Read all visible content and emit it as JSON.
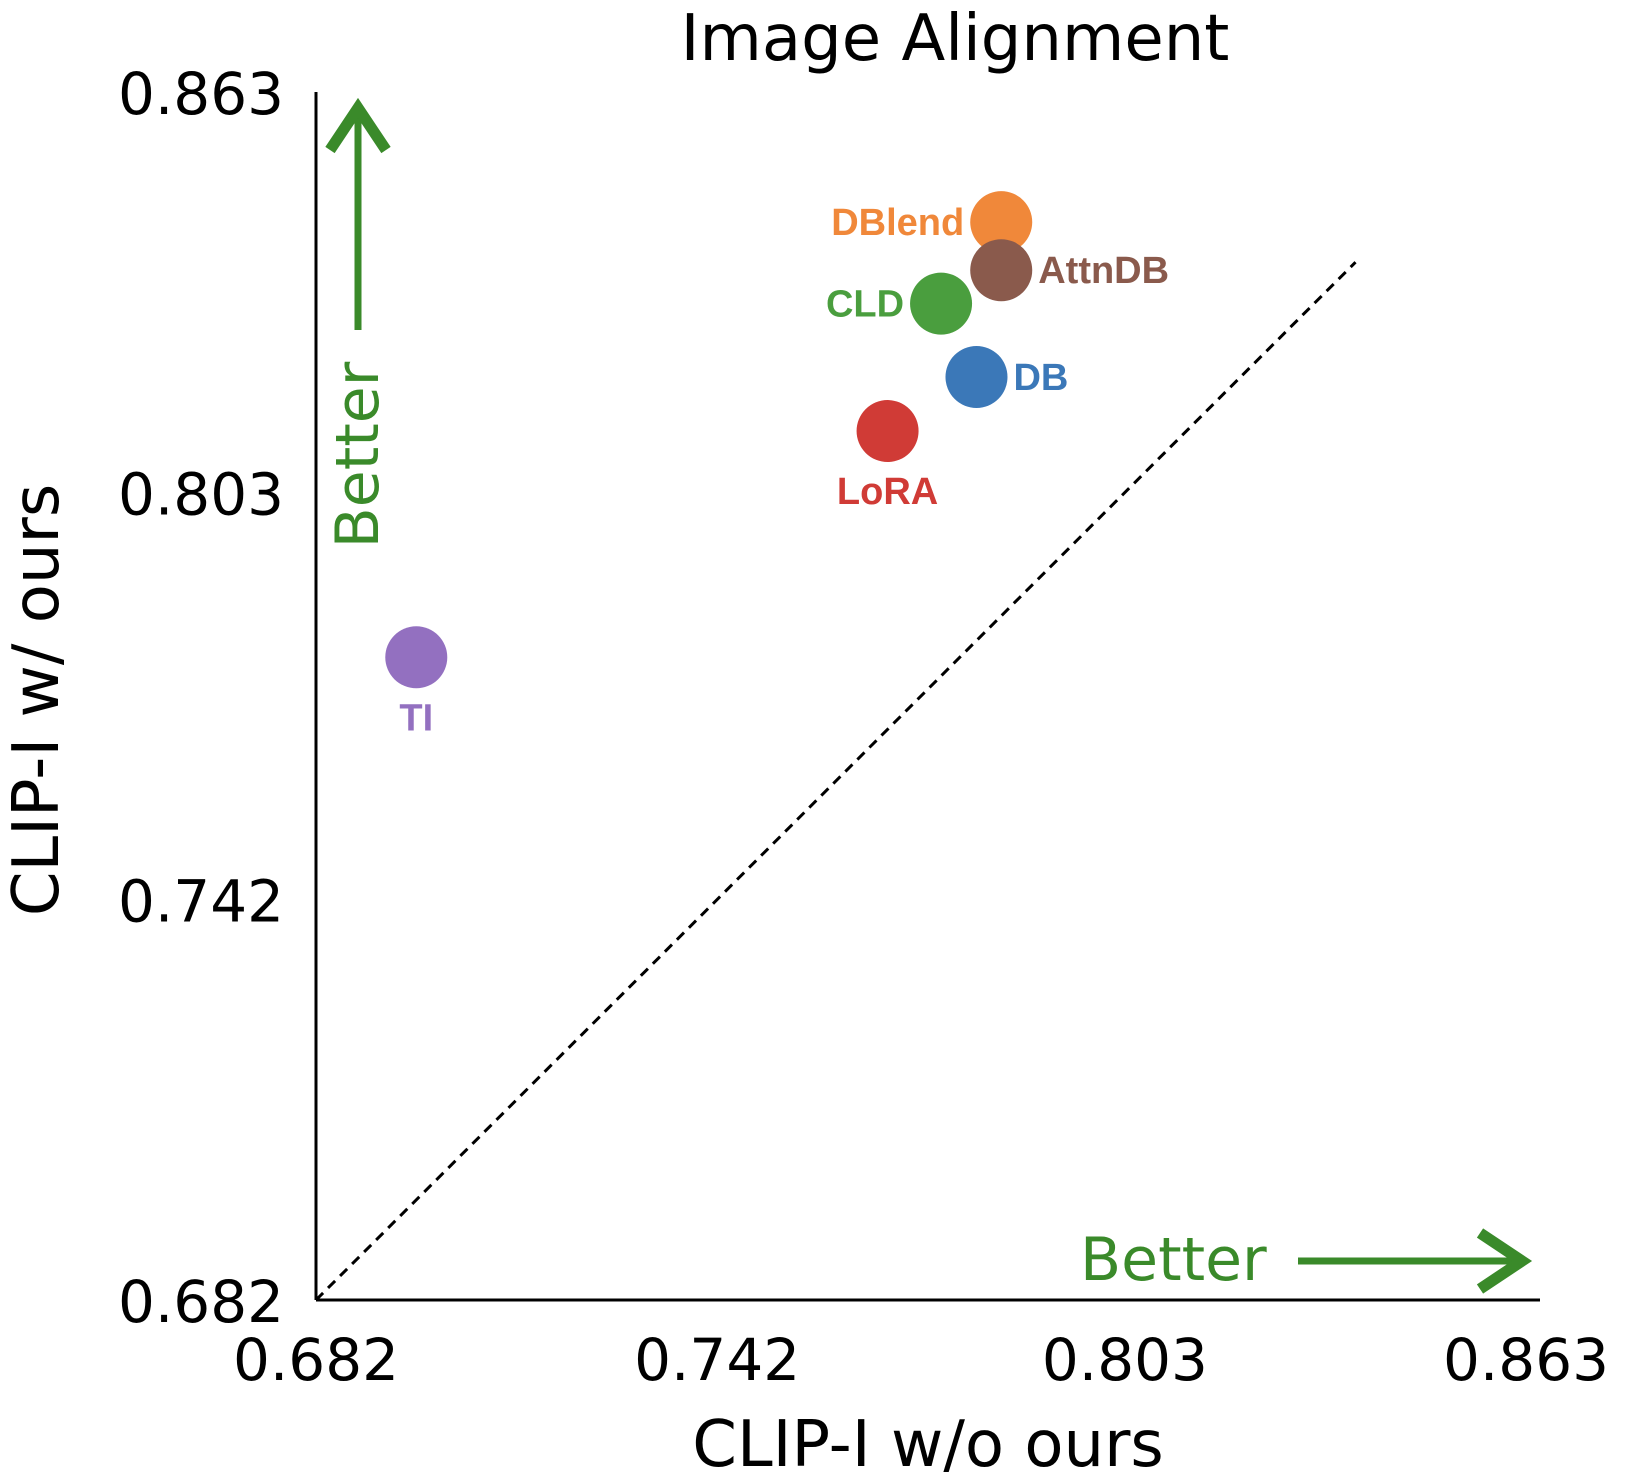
{
  "chart_data": {
    "type": "scatter",
    "title": "Image Alignment",
    "xlabel": "CLIP-I w/o ours",
    "ylabel": "CLIP-I w/ ours",
    "xlim": [
      0.682,
      0.863
    ],
    "ylim": [
      0.682,
      0.863
    ],
    "xticks": [
      "0.682",
      "0.742",
      "0.803",
      "0.863"
    ],
    "yticks": [
      "0.682",
      "0.742",
      "0.803",
      "0.863"
    ],
    "grid": false,
    "reference_line": "y = x",
    "annotations": {
      "y_arrow": "Better",
      "x_arrow": "Better",
      "arrow_color": "#3a8a2a"
    },
    "points": [
      {
        "label": "DBlend",
        "x": 0.7845,
        "y": 0.8435,
        "color": "#f0883a",
        "label_pos": "left"
      },
      {
        "label": "AttnDB",
        "x": 0.7845,
        "y": 0.8363,
        "color": "#8a5a4c",
        "label_pos": "right"
      },
      {
        "label": "CLD",
        "x": 0.7755,
        "y": 0.8313,
        "color": "#4a9e3e",
        "label_pos": "left"
      },
      {
        "label": "DB",
        "x": 0.7808,
        "y": 0.8203,
        "color": "#3b78b8",
        "label_pos": "right"
      },
      {
        "label": "LoRA",
        "x": 0.7675,
        "y": 0.8122,
        "color": "#d03b36",
        "label_pos": "below"
      },
      {
        "label": "TI",
        "x": 0.697,
        "y": 0.7783,
        "color": "#9370c0",
        "label_pos": "below"
      }
    ]
  }
}
